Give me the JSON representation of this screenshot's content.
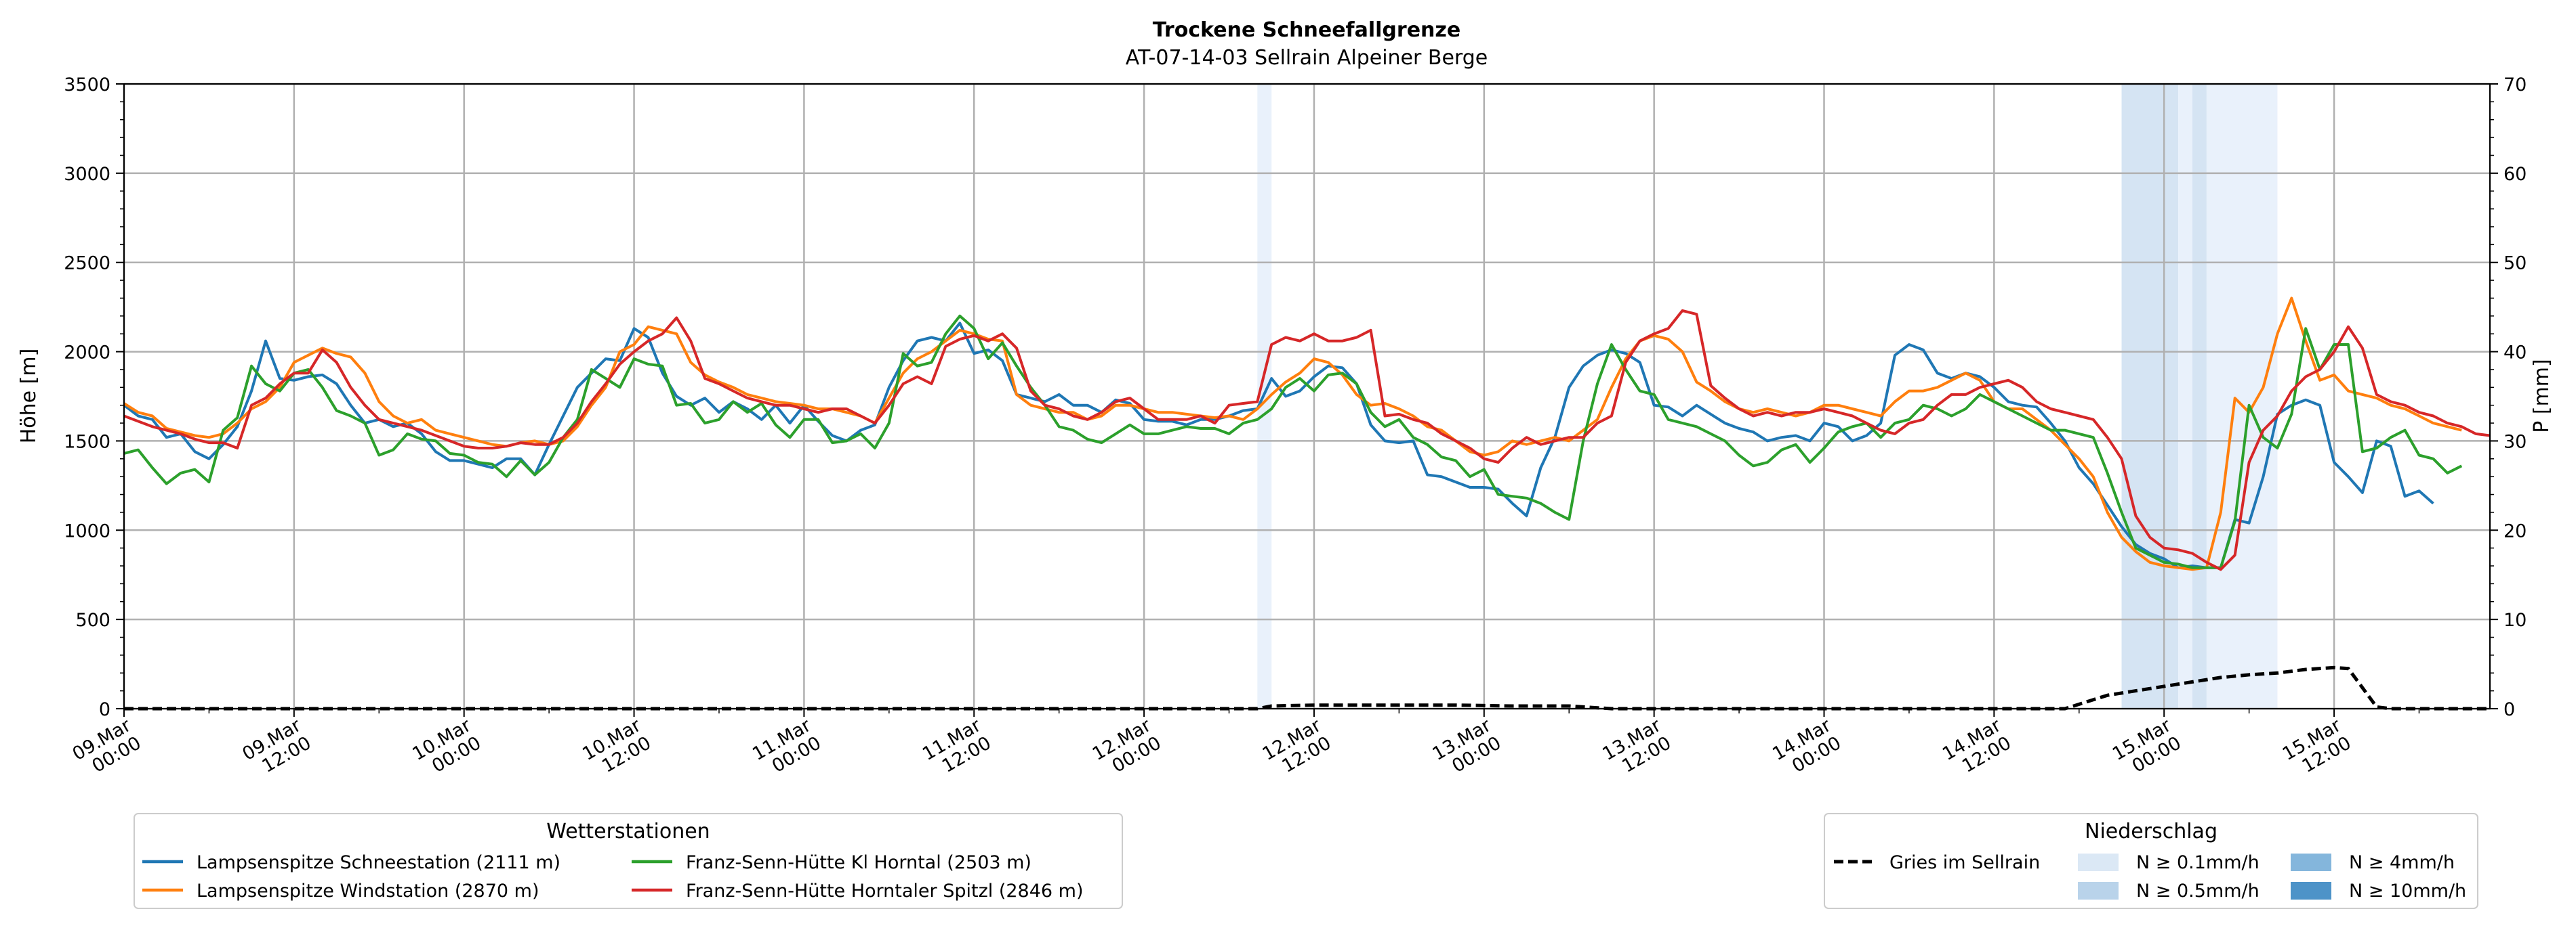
{
  "chart_data": {
    "type": "line",
    "title": "Trockene Schneefallgrenze",
    "subtitle": "AT-07-14-03 Sellrain Alpeiner Berge",
    "ylabel": "Höhe [m]",
    "y2label": "P [mm]",
    "ylim": [
      0,
      3500
    ],
    "y2lim": [
      0,
      70
    ],
    "xlim": [
      0,
      167
    ],
    "x_unit": "hours since 09.Mar 00:00",
    "yticks": [
      0,
      500,
      1000,
      1500,
      2000,
      2500,
      3000,
      3500
    ],
    "y2ticks": [
      0,
      10,
      20,
      30,
      40,
      50,
      60,
      70
    ],
    "xticks": [
      {
        "x": 0,
        "line1": "09.Mar",
        "line2": "00:00"
      },
      {
        "x": 12,
        "line1": "09.Mar",
        "line2": "12:00"
      },
      {
        "x": 24,
        "line1": "10.Mar",
        "line2": "00:00"
      },
      {
        "x": 36,
        "line1": "10.Mar",
        "line2": "12:00"
      },
      {
        "x": 48,
        "line1": "11.Mar",
        "line2": "00:00"
      },
      {
        "x": 60,
        "line1": "11.Mar",
        "line2": "12:00"
      },
      {
        "x": 72,
        "line1": "12.Mar",
        "line2": "00:00"
      },
      {
        "x": 84,
        "line1": "12.Mar",
        "line2": "12:00"
      },
      {
        "x": 96,
        "line1": "13.Mar",
        "line2": "00:00"
      },
      {
        "x": 108,
        "line1": "13.Mar",
        "line2": "12:00"
      },
      {
        "x": 120,
        "line1": "14.Mar",
        "line2": "00:00"
      },
      {
        "x": 132,
        "line1": "14.Mar",
        "line2": "12:00"
      },
      {
        "x": 144,
        "line1": "15.Mar",
        "line2": "00:00"
      },
      {
        "x": 156,
        "line1": "15.Mar",
        "line2": "12:00"
      }
    ],
    "grid": true,
    "series": [
      {
        "name": "Lampsenspitze Schneestation (2111 m)",
        "color": "#1f77b4",
        "values": [
          1700,
          1640,
          1620,
          1520,
          1540,
          1440,
          1400,
          1480,
          1580,
          1780,
          2060,
          1850,
          1840,
          1860,
          1870,
          1820,
          1700,
          1600,
          1620,
          1580,
          1600,
          1540,
          1440,
          1390,
          1390,
          1370,
          1350,
          1400,
          1400,
          1310,
          1480,
          1640,
          1800,
          1880,
          1960,
          1950,
          2130,
          2080,
          1880,
          1750,
          1700,
          1740,
          1660,
          1720,
          1680,
          1620,
          1700,
          1600,
          1700,
          1610,
          1530,
          1500,
          1560,
          1590,
          1800,
          1950,
          2060,
          2080,
          2060,
          2160,
          1990,
          2010,
          1950,
          1760,
          1740,
          1720,
          1760,
          1700,
          1700,
          1660,
          1730,
          1710,
          1620,
          1610,
          1610,
          1590,
          1620,
          1620,
          1640,
          1670,
          1680,
          1850,
          1750,
          1780,
          1860,
          1920,
          1910,
          1820,
          1590,
          1500,
          1490,
          1500,
          1310,
          1300,
          1270,
          1240,
          1240,
          1230,
          1150,
          1080,
          1350,
          1520,
          1800,
          1920,
          1980,
          2010,
          1990,
          1940,
          1700,
          1690,
          1640,
          1700,
          1650,
          1600,
          1570,
          1550,
          1500,
          1520,
          1530,
          1500,
          1600,
          1580,
          1500,
          1530,
          1600,
          1980,
          2040,
          2010,
          1880,
          1850,
          1880,
          1860,
          1800,
          1720,
          1700,
          1690,
          1600,
          1500,
          1350,
          1260,
          1140,
          1020,
          920,
          870,
          840,
          790,
          800,
          790,
          790,
          1060,
          1040,
          1300,
          1650,
          1700,
          1730,
          1700,
          1380,
          1300,
          1210,
          1500,
          1470,
          1190,
          1220,
          1150
        ]
      },
      {
        "name": "Lampsenspitze Windstation (2870 m)",
        "color": "#ff7f0e",
        "values": [
          1710,
          1660,
          1640,
          1570,
          1550,
          1530,
          1520,
          1540,
          1600,
          1680,
          1720,
          1800,
          1940,
          1980,
          2020,
          1990,
          1970,
          1880,
          1720,
          1640,
          1600,
          1620,
          1560,
          1540,
          1520,
          1500,
          1480,
          1470,
          1490,
          1500,
          1480,
          1500,
          1580,
          1700,
          1800,
          2000,
          2040,
          2140,
          2120,
          2100,
          1940,
          1870,
          1830,
          1800,
          1760,
          1740,
          1720,
          1710,
          1700,
          1680,
          1680,
          1660,
          1640,
          1600,
          1740,
          1880,
          1960,
          2000,
          2060,
          2120,
          2100,
          2070,
          2060,
          1760,
          1700,
          1680,
          1660,
          1660,
          1620,
          1640,
          1700,
          1700,
          1680,
          1660,
          1660,
          1650,
          1640,
          1630,
          1640,
          1620,
          1680,
          1760,
          1830,
          1880,
          1960,
          1940,
          1870,
          1760,
          1700,
          1710,
          1680,
          1640,
          1580,
          1560,
          1500,
          1440,
          1420,
          1440,
          1500,
          1480,
          1500,
          1520,
          1500,
          1560,
          1620,
          1800,
          1960,
          2060,
          2090,
          2070,
          2000,
          1830,
          1780,
          1720,
          1680,
          1660,
          1680,
          1660,
          1640,
          1660,
          1700,
          1700,
          1680,
          1660,
          1640,
          1720,
          1780,
          1780,
          1800,
          1840,
          1880,
          1840,
          1720,
          1680,
          1680,
          1620,
          1560,
          1480,
          1400,
          1300,
          1100,
          960,
          880,
          820,
          800,
          790,
          780,
          790,
          1100,
          1740,
          1660,
          1800,
          2100,
          2300,
          2060,
          1840,
          1870,
          1780,
          1760,
          1740,
          1700,
          1680,
          1640,
          1600,
          1580,
          1560
        ]
      },
      {
        "name": "Franz-Senn-Hütte Kl Horntal (2503 m)",
        "color": "#2ca02c",
        "values": [
          1430,
          1450,
          1350,
          1260,
          1320,
          1340,
          1270,
          1560,
          1630,
          1920,
          1820,
          1780,
          1880,
          1900,
          1800,
          1670,
          1640,
          1600,
          1420,
          1450,
          1540,
          1510,
          1500,
          1430,
          1420,
          1380,
          1370,
          1300,
          1390,
          1310,
          1380,
          1520,
          1620,
          1900,
          1850,
          1800,
          1960,
          1930,
          1920,
          1700,
          1710,
          1600,
          1620,
          1720,
          1660,
          1710,
          1590,
          1520,
          1620,
          1620,
          1490,
          1500,
          1540,
          1460,
          1600,
          1990,
          1920,
          1940,
          2100,
          2200,
          2130,
          1960,
          2050,
          1920,
          1800,
          1700,
          1580,
          1560,
          1510,
          1490,
          1540,
          1590,
          1540,
          1540,
          1560,
          1580,
          1570,
          1570,
          1540,
          1600,
          1620,
          1680,
          1800,
          1850,
          1780,
          1870,
          1880,
          1820,
          1660,
          1580,
          1620,
          1520,
          1480,
          1410,
          1390,
          1300,
          1340,
          1200,
          1190,
          1180,
          1150,
          1100,
          1060,
          1500,
          1820,
          2040,
          1900,
          1780,
          1760,
          1620,
          1600,
          1580,
          1540,
          1500,
          1420,
          1360,
          1380,
          1450,
          1480,
          1380,
          1460,
          1550,
          1580,
          1600,
          1520,
          1600,
          1620,
          1700,
          1680,
          1640,
          1680,
          1760,
          1720,
          1680,
          1640,
          1600,
          1560,
          1560,
          1540,
          1520,
          1320,
          1100,
          900,
          860,
          820,
          810,
          790,
          790,
          790,
          1050,
          1700,
          1520,
          1460,
          1650,
          2130,
          1900,
          2040,
          2040,
          1440,
          1460,
          1520,
          1560,
          1420,
          1400,
          1320,
          1360
        ]
      },
      {
        "name": "Franz-Senn-Hütte Horntaler Spitzl (2846 m)",
        "color": "#d62728",
        "values": [
          1640,
          1610,
          1580,
          1560,
          1540,
          1510,
          1490,
          1490,
          1460,
          1700,
          1740,
          1820,
          1880,
          1880,
          2010,
          1940,
          1800,
          1700,
          1620,
          1600,
          1580,
          1560,
          1530,
          1500,
          1470,
          1460,
          1460,
          1470,
          1490,
          1480,
          1480,
          1520,
          1600,
          1720,
          1820,
          1930,
          2000,
          2060,
          2100,
          2190,
          2060,
          1850,
          1820,
          1780,
          1740,
          1720,
          1700,
          1700,
          1680,
          1660,
          1680,
          1680,
          1640,
          1600,
          1700,
          1820,
          1860,
          1820,
          2030,
          2070,
          2090,
          2060,
          2100,
          2020,
          1780,
          1700,
          1680,
          1640,
          1620,
          1660,
          1720,
          1740,
          1680,
          1620,
          1620,
          1620,
          1640,
          1600,
          1700,
          1710,
          1720,
          2040,
          2080,
          2060,
          2100,
          2060,
          2060,
          2080,
          2120,
          1640,
          1650,
          1620,
          1600,
          1540,
          1500,
          1460,
          1400,
          1380,
          1460,
          1520,
          1480,
          1500,
          1520,
          1520,
          1600,
          1640,
          1940,
          2060,
          2100,
          2130,
          2230,
          2210,
          1810,
          1740,
          1680,
          1640,
          1660,
          1640,
          1660,
          1660,
          1680,
          1660,
          1640,
          1600,
          1560,
          1540,
          1600,
          1620,
          1700,
          1760,
          1760,
          1800,
          1820,
          1840,
          1800,
          1720,
          1680,
          1660,
          1640,
          1620,
          1520,
          1400,
          1080,
          960,
          900,
          890,
          870,
          820,
          780,
          860,
          1380,
          1560,
          1640,
          1780,
          1860,
          1900,
          2000,
          2140,
          2020,
          1760,
          1720,
          1700,
          1660,
          1640,
          1600,
          1580,
          1540,
          1530
        ]
      }
    ],
    "precip_series": {
      "name": "Gries im Sellrain",
      "color": "#000000",
      "style": "dashed",
      "points": [
        [
          0,
          0
        ],
        [
          80,
          0
        ],
        [
          81,
          0.3
        ],
        [
          84,
          0.4
        ],
        [
          94,
          0.4
        ],
        [
          98,
          0.3
        ],
        [
          102,
          0.3
        ],
        [
          105,
          0
        ],
        [
          134,
          0
        ],
        [
          137,
          0
        ],
        [
          140,
          1.5
        ],
        [
          144,
          2.5
        ],
        [
          146,
          3
        ],
        [
          148,
          3.5
        ],
        [
          150,
          3.8
        ],
        [
          152,
          4
        ],
        [
          154,
          4.4
        ],
        [
          156,
          4.6
        ],
        [
          157,
          4.5
        ],
        [
          159,
          0.2
        ],
        [
          160,
          0
        ],
        [
          167,
          0
        ]
      ]
    },
    "precip_bands": [
      {
        "start": 80,
        "end": 81,
        "class": "N ≥ 0.1mm/h"
      },
      {
        "start": 141,
        "end": 145,
        "class": "N ≥ 0.5mm/h"
      },
      {
        "start": 145,
        "end": 146,
        "class": "N ≥ 0.1mm/h"
      },
      {
        "start": 146,
        "end": 147,
        "class": "N ≥ 0.5mm/h"
      },
      {
        "start": 147,
        "end": 152,
        "class": "N ≥ 0.1mm/h"
      }
    ],
    "legend_stations": {
      "title": "Wetterstationen",
      "placement": "bottom-left"
    },
    "legend_precip": {
      "title": "Niederschlag",
      "placement": "bottom-right",
      "classes": [
        {
          "label": "N ≥ 0.1mm/h",
          "color": "#dbe8f5"
        },
        {
          "label": "N ≥ 0.5mm/h",
          "color": "#b9d3ea"
        },
        {
          "label": "N ≥ 4mm/h",
          "color": "#84b6dc"
        },
        {
          "label": "N ≥ 10mm/h",
          "color": "#4d93c8"
        }
      ]
    },
    "colors": {
      "band_01": "#e9f1fb",
      "band_05": "#d5e4f3",
      "grid": "#b0b0b0",
      "axis": "#000000"
    }
  }
}
